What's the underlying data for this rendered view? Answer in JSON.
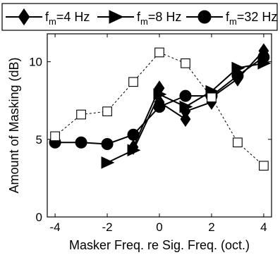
{
  "chart_data": {
    "type": "line",
    "title": "",
    "xlabel": "Masker Freq. re Sig. Freq. (oct.)",
    "ylabel": "Amount of Masking (dB)",
    "xlim": [
      -4.3,
      4.3
    ],
    "ylim": [
      0,
      11.8
    ],
    "xticks": [
      -4,
      -2,
      0,
      2,
      4
    ],
    "xtick_labels": [
      "-4",
      "-2",
      "0",
      "2",
      "4"
    ],
    "yticks": [
      0,
      5,
      10
    ],
    "ytick_labels": [
      "0",
      "5",
      "10"
    ],
    "grid": false,
    "legend_position": "top",
    "series": [
      {
        "name": "f_m=4 Hz",
        "legend_base": "f",
        "legend_sub": "m",
        "legend_rest": "=4 Hz",
        "marker": "diamond",
        "line": "solid",
        "color": "#000000",
        "fill": "#000000",
        "x": [
          -1,
          0,
          0,
          1,
          1,
          2,
          2,
          3,
          4
        ],
        "y": [
          4.5,
          8.3,
          7.4,
          6.3,
          6.8,
          7.4,
          7.7,
          8.9,
          10.7
        ]
      },
      {
        "name": "f_m=8 Hz",
        "legend_base": "f",
        "legend_sub": "m",
        "legend_rest": "=8 Hz",
        "marker": "triangle-right",
        "line": "solid",
        "color": "#000000",
        "fill": "#000000",
        "x": [
          -2,
          -1,
          0,
          1,
          2,
          3,
          4
        ],
        "y": [
          3.5,
          4.3,
          7.9,
          7.1,
          8.1,
          9.6,
          9.9
        ]
      },
      {
        "name": "f_m=32 Hz",
        "legend_base": "f",
        "legend_sub": "m",
        "legend_rest": "=32 Hz",
        "marker": "circle",
        "line": "solid",
        "color": "#000000",
        "fill": "#000000",
        "x": [
          -4,
          -3,
          -2,
          -1,
          0,
          1,
          2,
          3,
          4
        ],
        "y": [
          4.8,
          4.8,
          4.7,
          5.3,
          7.1,
          7.8,
          7.8,
          9.1,
          10.3
        ]
      },
      {
        "name": "",
        "marker": "square-open",
        "line": "dashed",
        "color": "#000000",
        "fill": "#ffffff",
        "x": [
          -4,
          -3,
          -2,
          -1,
          0,
          1,
          2,
          3,
          4
        ],
        "y": [
          5.2,
          6.6,
          6.8,
          8.7,
          10.6,
          9.9,
          7.7,
          4.8,
          3.3
        ]
      }
    ]
  }
}
